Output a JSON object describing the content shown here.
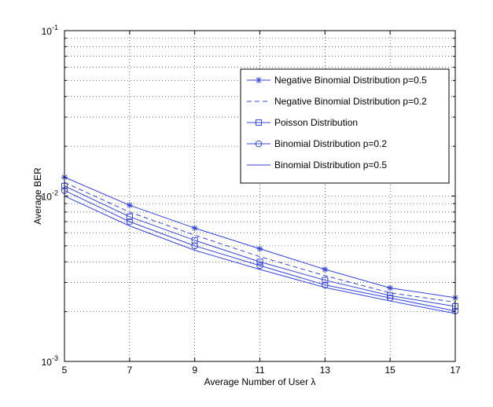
{
  "chart_data": {
    "type": "line",
    "title": "",
    "xlabel": "Average Number of User λ",
    "ylabel": "Average BER",
    "xlim": [
      5,
      17
    ],
    "ylim": [
      0.001,
      0.1
    ],
    "yscale": "log",
    "grid": true,
    "x": [
      5,
      7,
      9,
      11,
      13,
      15,
      17
    ],
    "x_ticks": [
      "5",
      "7",
      "9",
      "11",
      "13",
      "15",
      "17"
    ],
    "y_ticks": [
      {
        "base": "10",
        "exp": "-1"
      },
      {
        "base": "10",
        "exp": "-2"
      },
      {
        "base": "10",
        "exp": "-3"
      }
    ],
    "legend_position": "top-right",
    "color": "#3344dd",
    "series": [
      {
        "name": "Negative Binomial Distribution p=0.5",
        "marker": "star",
        "dash": "solid",
        "values": [
          0.013,
          0.0088,
          0.0064,
          0.0048,
          0.0036,
          0.00278,
          0.00243
        ]
      },
      {
        "name": "Negative Binomial Distribution p=0.2",
        "marker": "none",
        "dash": "dashed",
        "values": [
          0.0121,
          0.008,
          0.0058,
          0.0043,
          0.0033,
          0.0026,
          0.00228
        ]
      },
      {
        "name": "Poisson Distribution",
        "marker": "square",
        "dash": "solid",
        "values": [
          0.0115,
          0.0075,
          0.0054,
          0.004,
          0.0031,
          0.0025,
          0.00215
        ]
      },
      {
        "name": "Binomial Distribution p=0.2",
        "marker": "circle",
        "dash": "solid",
        "values": [
          0.0108,
          0.007,
          0.005,
          0.0038,
          0.0029,
          0.00242,
          0.00202
        ]
      },
      {
        "name": "Binomial Distribution p=0.5",
        "marker": "none",
        "dash": "solid",
        "values": [
          0.01,
          0.0066,
          0.0047,
          0.0036,
          0.0028,
          0.00232,
          0.00195
        ]
      }
    ]
  }
}
